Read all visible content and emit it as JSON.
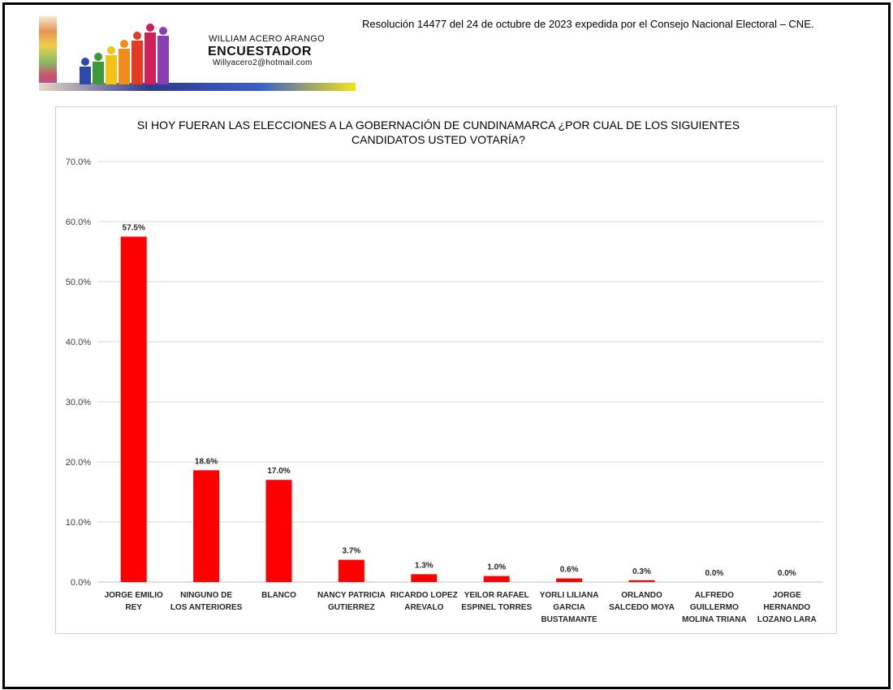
{
  "header": {
    "resolution": "Resolución 14477 del 24 de octubre de 2023 expedida por el Consejo Nacional Electoral – CNE."
  },
  "logo": {
    "name": "WILLIAM ACERO ARANGO",
    "role": "ENCUESTADOR",
    "email": "Willyacero2@hotmail.com"
  },
  "chart_data": {
    "type": "bar",
    "title": "SI HOY FUERAN LAS ELECCIONES A LA GOBERNACIÓN DE CUNDINAMARCA ¿POR CUAL DE LOS SIGUIENTES CANDIDATOS USTED VOTARÍA?",
    "title_lines": [
      "SI HOY FUERAN LAS ELECCIONES A LA GOBERNACIÓN DE CUNDINAMARCA ¿POR CUAL DE LOS SIGUIENTES",
      "CANDIDATOS USTED VOTARÍA?"
    ],
    "categories": [
      [
        "JORGE EMILIO",
        "REY"
      ],
      [
        "NINGUNO DE",
        "LOS ANTERIORES"
      ],
      [
        "BLANCO"
      ],
      [
        "NANCY PATRICIA",
        "GUTIERREZ"
      ],
      [
        "RICARDO LOPEZ",
        "AREVALO"
      ],
      [
        "YEILOR RAFAEL",
        "ESPINEL TORRES"
      ],
      [
        "YORLI LILIANA",
        "GARCIA",
        "BUSTAMANTE"
      ],
      [
        "ORLANDO",
        "SALCEDO MOYA"
      ],
      [
        "ALFREDO",
        "GUILLERMO",
        "MOLINA TRIANA"
      ],
      [
        "JORGE",
        "HERNANDO",
        "LOZANO LARA"
      ]
    ],
    "values": [
      57.5,
      18.6,
      17.0,
      3.7,
      1.3,
      1.0,
      0.6,
      0.3,
      0.0,
      0.0
    ],
    "data_labels": [
      "57.5%",
      "18.6%",
      "17.0%",
      "3.7%",
      "1.3%",
      "1.0%",
      "0.6%",
      "0.3%",
      "0.0%",
      "0.0%"
    ],
    "y_ticks": [
      "0.0%",
      "10.0%",
      "20.0%",
      "30.0%",
      "40.0%",
      "50.0%",
      "60.0%",
      "70.0%"
    ],
    "ylim": [
      0,
      70
    ],
    "grid": true,
    "bar_color": "#ff0000"
  }
}
